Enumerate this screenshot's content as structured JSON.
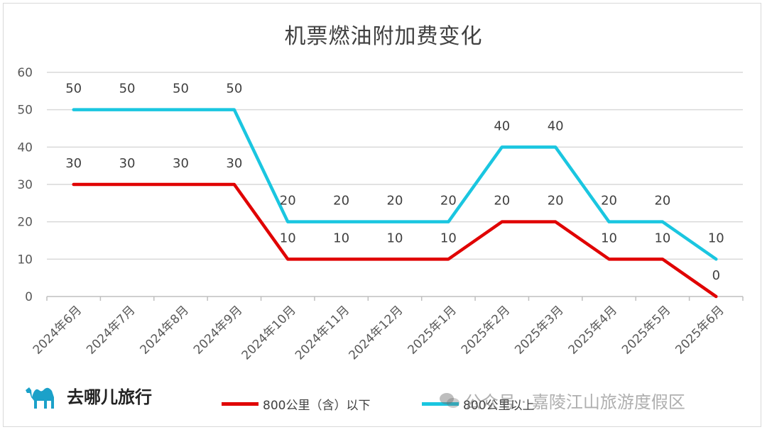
{
  "chart_data": {
    "type": "line",
    "title": "机票燃油附加费变化",
    "categories": [
      "2024年6月",
      "2024年7月",
      "2024年8月",
      "2024年9月",
      "2024年10月",
      "2024年11月",
      "2024年12月",
      "2025年1月",
      "2025年2月",
      "2025年3月",
      "2025年4月",
      "2025年5月",
      "2025年6月"
    ],
    "series": [
      {
        "name": "800公里（含）以下",
        "color": "#e00000",
        "values": [
          30,
          30,
          30,
          30,
          10,
          10,
          10,
          10,
          20,
          20,
          10,
          10,
          0
        ]
      },
      {
        "name": "800公里以上",
        "color": "#1ac6e0",
        "values": [
          50,
          50,
          50,
          50,
          20,
          20,
          20,
          20,
          40,
          40,
          20,
          20,
          10
        ]
      }
    ],
    "ylim": [
      0,
      60
    ],
    "yticks": [
      0,
      10,
      20,
      30,
      40,
      50,
      60
    ],
    "grid": true,
    "legend": "bottom"
  },
  "branding": {
    "logo_text": "去哪儿旅行",
    "logo_icon": "camel-icon"
  },
  "watermark": {
    "icon": "wechat-icon",
    "text": "公众号 · 嘉陵江山旅游度假区"
  }
}
